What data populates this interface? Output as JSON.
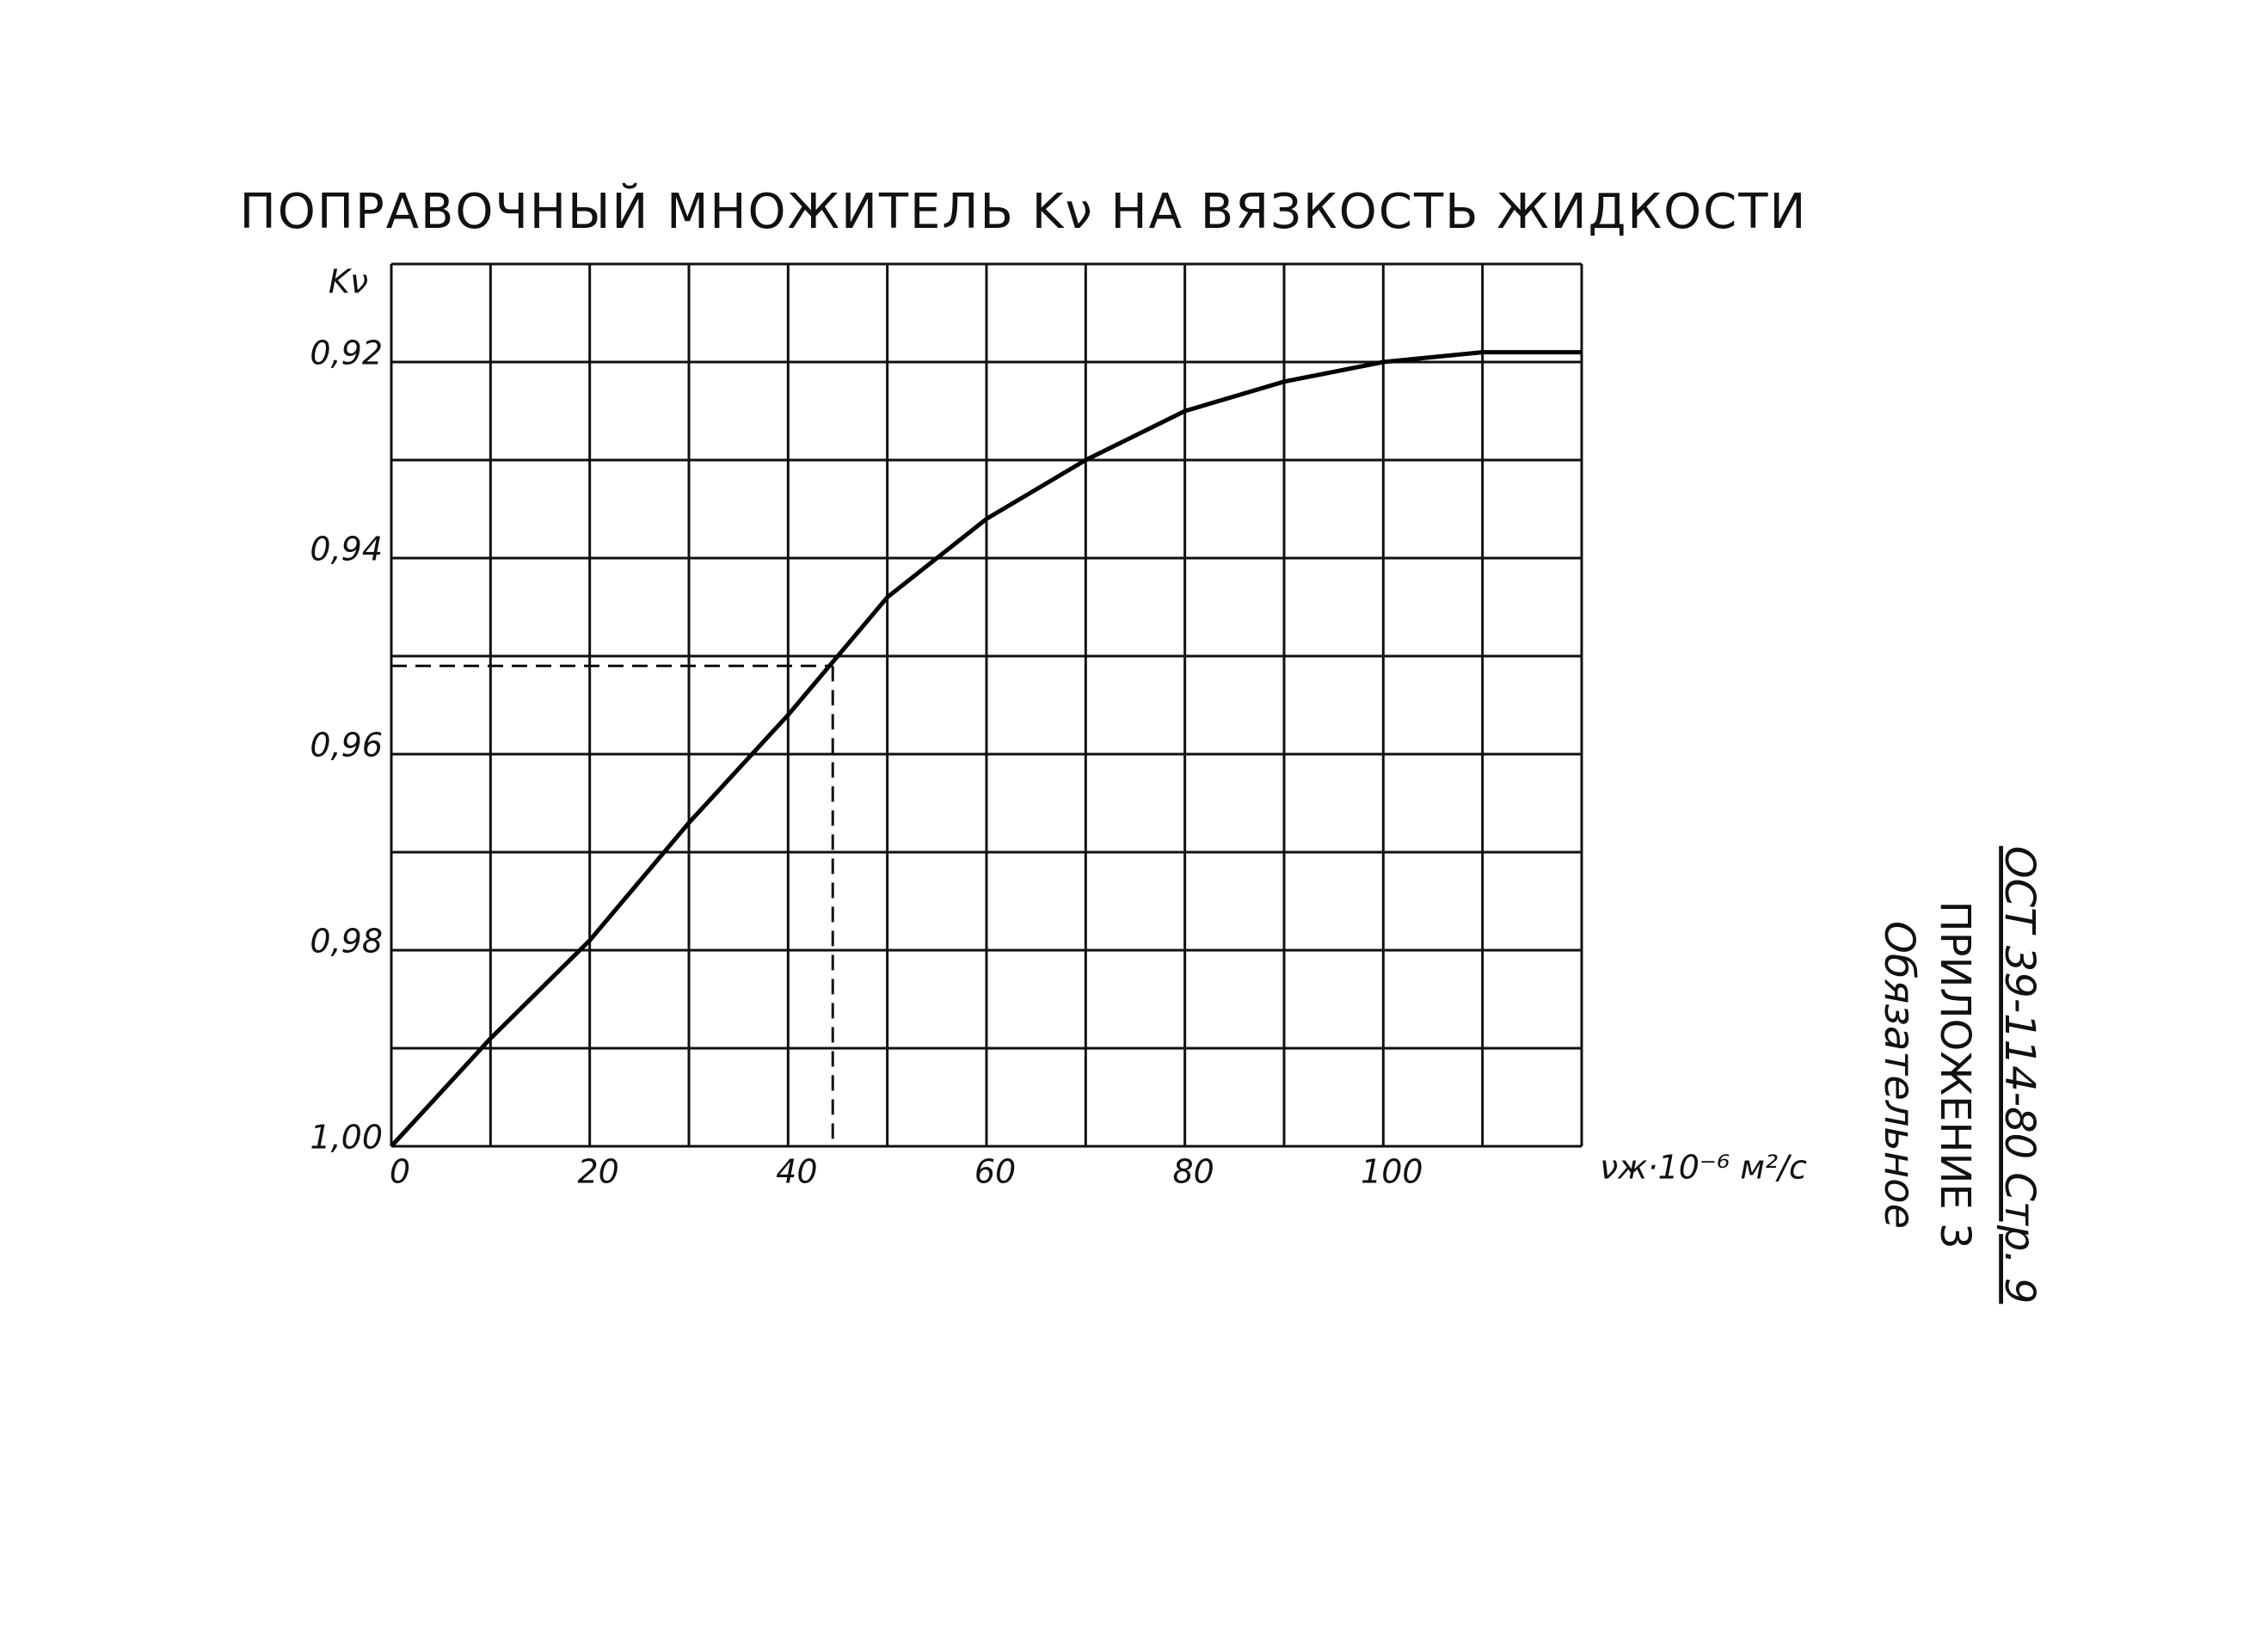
{
  "chart_data": {
    "type": "line",
    "title": "ПОПРАВОЧНЫЙ МНОЖИТЕЛЬ Kν НА ВЯЗКОСТЬ ЖИДКОСТИ",
    "y_label": "Kν",
    "x_label": "νж·10⁻⁶ м²/с",
    "x": [
      0,
      10,
      20,
      30,
      40,
      50,
      60,
      70,
      80,
      90,
      100,
      110,
      120
    ],
    "series": [
      {
        "color": "#000000",
        "values": [
          1.0,
          0.989,
          0.979,
          0.967,
          0.956,
          0.944,
          0.936,
          0.93,
          0.925,
          0.922,
          0.92,
          0.919,
          0.919
        ]
      }
    ],
    "xlim": [
      0,
      120
    ],
    "ylim": [
      1.0,
      0.91
    ],
    "xticks": [
      0,
      20,
      40,
      60,
      80,
      100
    ],
    "yticks": [
      {
        "value": 0.92,
        "label": "0,92"
      },
      {
        "value": 0.94,
        "label": "0,94"
      },
      {
        "value": 0.96,
        "label": "0,96"
      },
      {
        "value": 0.98,
        "label": "0,98"
      },
      {
        "value": 1.0,
        "label": "1,00"
      }
    ],
    "xgrid": [
      0,
      10,
      20,
      30,
      40,
      50,
      60,
      70,
      80,
      90,
      100,
      110,
      120
    ],
    "ygrid": [
      0.91,
      0.92,
      0.93,
      0.94,
      0.95,
      0.96,
      0.97,
      0.98,
      0.99,
      1.0
    ],
    "guide": {
      "x": 44.5,
      "y": 0.951
    },
    "grid": true
  },
  "side_note": {
    "standard": "ОСТ 39-114-80 Стр. 9",
    "appendix": "ПРИЛОЖЕНИЕ 3",
    "status": "Обязательное"
  }
}
